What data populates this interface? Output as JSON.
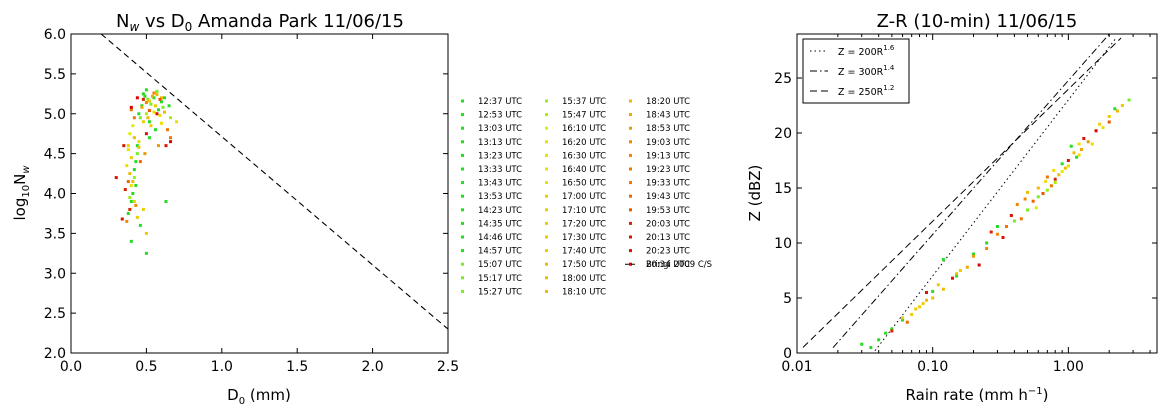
{
  "chart_data": [
    {
      "type": "scatter",
      "title_parts": [
        "N",
        "w",
        " vs D",
        "0",
        " Amanda Park 11/06/15"
      ],
      "xlabel_parts": [
        "D",
        "0",
        " (mm)"
      ],
      "ylabel_parts": [
        "log",
        "10",
        "N",
        "w"
      ],
      "xlim": [
        0.0,
        2.5
      ],
      "ylim": [
        2.0,
        6.0
      ],
      "x_ticks": [
        "0.0",
        "0.5",
        "1.0",
        "1.5",
        "2.0",
        "2.5"
      ],
      "y_ticks": [
        "2.0",
        "2.5",
        "3.0",
        "3.5",
        "4.0",
        "4.5",
        "5.0",
        "5.5",
        "6.0"
      ],
      "reference_line": {
        "name": "Bringi 2009 C/S",
        "x": [
          0.2,
          2.5
        ],
        "y": [
          6.0,
          2.3
        ],
        "style": "dashed"
      },
      "series": [
        {
          "name": "12:37 UTC",
          "color": "#22dd22"
        },
        {
          "name": "12:53 UTC",
          "color": "#22dd22"
        },
        {
          "name": "13:03 UTC",
          "color": "#22dd22"
        },
        {
          "name": "13:13 UTC",
          "color": "#22dd22"
        },
        {
          "name": "13:23 UTC",
          "color": "#22dd22"
        },
        {
          "name": "13:33 UTC",
          "color": "#22dd22"
        },
        {
          "name": "13:43 UTC",
          "color": "#22dd22"
        },
        {
          "name": "13:53 UTC",
          "color": "#22dd22"
        },
        {
          "name": "14:23 UTC",
          "color": "#22dd22"
        },
        {
          "name": "14:35 UTC",
          "color": "#22dd22"
        },
        {
          "name": "14:46 UTC",
          "color": "#22dd22"
        },
        {
          "name": "14:57 UTC",
          "color": "#22dd22"
        },
        {
          "name": "15:07 UTC",
          "color": "#77ee22"
        },
        {
          "name": "15:17 UTC",
          "color": "#77ee22"
        },
        {
          "name": "15:27 UTC",
          "color": "#77ee22"
        },
        {
          "name": "15:37 UTC",
          "color": "#99ee22"
        },
        {
          "name": "15:47 UTC",
          "color": "#aaee11"
        },
        {
          "name": "16:10 UTC",
          "color": "#ddee00"
        },
        {
          "name": "16:20 UTC",
          "color": "#eedd00"
        },
        {
          "name": "16:30 UTC",
          "color": "#eedd00"
        },
        {
          "name": "16:40 UTC",
          "color": "#eedd00"
        },
        {
          "name": "16:50 UTC",
          "color": "#eedd00"
        },
        {
          "name": "17:00 UTC",
          "color": "#eecc00"
        },
        {
          "name": "17:10 UTC",
          "color": "#eecc00"
        },
        {
          "name": "17:20 UTC",
          "color": "#eecc00"
        },
        {
          "name": "17:30 UTC",
          "color": "#eecc00"
        },
        {
          "name": "17:40 UTC",
          "color": "#eecc00"
        },
        {
          "name": "17:50 UTC",
          "color": "#eebb00"
        },
        {
          "name": "18:00 UTC",
          "color": "#eebb00"
        },
        {
          "name": "18:10 UTC",
          "color": "#eebb00"
        },
        {
          "name": "18:20 UTC",
          "color": "#eebb00"
        },
        {
          "name": "18:43 UTC",
          "color": "#eeaa00"
        },
        {
          "name": "18:53 UTC",
          "color": "#ee9900"
        },
        {
          "name": "19:03 UTC",
          "color": "#ee8800"
        },
        {
          "name": "19:13 UTC",
          "color": "#ee8800"
        },
        {
          "name": "19:23 UTC",
          "color": "#ee7700"
        },
        {
          "name": "19:33 UTC",
          "color": "#ee7700"
        },
        {
          "name": "19:43 UTC",
          "color": "#ee6600"
        },
        {
          "name": "19:53 UTC",
          "color": "#ee5500"
        },
        {
          "name": "20:03 UTC",
          "color": "#dd2200"
        },
        {
          "name": "20:13 UTC",
          "color": "#dd1100"
        },
        {
          "name": "20:23 UTC",
          "color": "#dd1100"
        },
        {
          "name": "20:34 UTC",
          "color": "#dd0000"
        }
      ],
      "points": [
        [
          0.5,
          5.3,
          0
        ],
        [
          0.47,
          5.1,
          0
        ],
        [
          0.55,
          5.2,
          1
        ],
        [
          0.52,
          4.9,
          1
        ],
        [
          0.6,
          5.15,
          2
        ],
        [
          0.48,
          5.25,
          2
        ],
        [
          0.44,
          4.6,
          3
        ],
        [
          0.42,
          4.3,
          3
        ],
        [
          0.4,
          3.9,
          4
        ],
        [
          0.38,
          3.75,
          4
        ],
        [
          0.43,
          4.1,
          5
        ],
        [
          0.41,
          4.0,
          5
        ],
        [
          0.5,
          3.25,
          6
        ],
        [
          0.46,
          3.6,
          6
        ],
        [
          0.62,
          5.2,
          7
        ],
        [
          0.65,
          5.1,
          7
        ],
        [
          0.63,
          3.9,
          8
        ],
        [
          0.58,
          5.05,
          8
        ],
        [
          0.56,
          4.8,
          9
        ],
        [
          0.52,
          4.7,
          9
        ],
        [
          0.45,
          5.0,
          10
        ],
        [
          0.49,
          5.22,
          10
        ],
        [
          0.4,
          3.4,
          11
        ],
        [
          0.43,
          4.4,
          11
        ],
        [
          0.51,
          5.18,
          12
        ],
        [
          0.57,
          5.28,
          12
        ],
        [
          0.61,
          5.08,
          13
        ],
        [
          0.46,
          4.95,
          13
        ],
        [
          0.53,
          5.12,
          14
        ],
        [
          0.44,
          4.5,
          14
        ],
        [
          0.42,
          4.2,
          15
        ],
        [
          0.39,
          3.95,
          15
        ],
        [
          0.5,
          5.0,
          16
        ],
        [
          0.66,
          4.95,
          16
        ],
        [
          0.41,
          4.85,
          17
        ],
        [
          0.39,
          4.75,
          17
        ],
        [
          0.7,
          4.9,
          18
        ],
        [
          0.6,
          4.88,
          18
        ],
        [
          0.45,
          4.65,
          19
        ],
        [
          0.38,
          4.55,
          19
        ],
        [
          0.37,
          4.35,
          20
        ],
        [
          0.4,
          4.1,
          20
        ],
        [
          0.55,
          5.02,
          21
        ],
        [
          0.59,
          4.98,
          21
        ],
        [
          0.48,
          3.8,
          22
        ],
        [
          0.44,
          3.7,
          22
        ],
        [
          0.5,
          3.5,
          23
        ],
        [
          0.42,
          3.9,
          23
        ],
        [
          0.52,
          5.16,
          24
        ],
        [
          0.56,
          5.1,
          24
        ],
        [
          0.38,
          4.6,
          25
        ],
        [
          0.4,
          4.45,
          25
        ],
        [
          0.48,
          4.9,
          26
        ],
        [
          0.53,
          4.85,
          26
        ],
        [
          0.57,
          5.24,
          27
        ],
        [
          0.6,
          5.2,
          27
        ],
        [
          0.42,
          4.7,
          28
        ],
        [
          0.45,
          4.58,
          28
        ],
        [
          0.39,
          4.25,
          29
        ],
        [
          0.41,
          4.15,
          29
        ],
        [
          0.51,
          4.95,
          30
        ],
        [
          0.62,
          5.02,
          30
        ],
        [
          0.54,
          5.22,
          31
        ],
        [
          0.47,
          5.08,
          31
        ],
        [
          0.58,
          4.6,
          32
        ],
        [
          0.49,
          4.5,
          32
        ],
        [
          0.43,
          3.85,
          33
        ],
        [
          0.37,
          3.65,
          33
        ],
        [
          0.55,
          5.26,
          34
        ],
        [
          0.5,
          5.14,
          34
        ],
        [
          0.64,
          4.8,
          35
        ],
        [
          0.66,
          4.7,
          35
        ],
        [
          0.42,
          4.95,
          36
        ],
        [
          0.4,
          5.05,
          36
        ],
        [
          0.46,
          4.4,
          37
        ],
        [
          0.38,
          4.15,
          37
        ],
        [
          0.59,
          5.18,
          38
        ],
        [
          0.52,
          5.04,
          38
        ],
        [
          0.39,
          3.8,
          39
        ],
        [
          0.36,
          4.05,
          39
        ],
        [
          0.3,
          4.2,
          40
        ],
        [
          0.34,
          3.68,
          40
        ],
        [
          0.5,
          4.75,
          41
        ],
        [
          0.63,
          4.6,
          41
        ],
        [
          0.4,
          5.08,
          42
        ],
        [
          0.44,
          5.2,
          42
        ],
        [
          0.35,
          4.6,
          41
        ],
        [
          0.66,
          4.65,
          42
        ],
        [
          0.57,
          5.0,
          40
        ],
        [
          0.48,
          5.18,
          39
        ]
      ]
    },
    {
      "type": "scatter",
      "title": "Z-R (10-min) 11/06/15",
      "xlabel_parts": [
        "Rain rate (mm h",
        "−1",
        ")"
      ],
      "ylabel": "Z (dBZ)",
      "xscale": "log",
      "xlim": [
        0.01,
        4.5
      ],
      "ylim": [
        0,
        29
      ],
      "x_ticks": [
        {
          "v": 0.01,
          "label": "0.01"
        },
        {
          "v": 0.1,
          "label": "0.10"
        },
        {
          "v": 1.0,
          "label": "1.00"
        }
      ],
      "y_ticks": [
        "0",
        "5",
        "10",
        "15",
        "20",
        "25"
      ],
      "legend": "top-left",
      "relations": [
        {
          "base": "Z = 200R",
          "exp": "1.6",
          "a": 200,
          "b": 1.6,
          "style": "dotted"
        },
        {
          "base": "Z = 300R",
          "exp": "1.4",
          "a": 300,
          "b": 1.4,
          "style": "dashdot"
        },
        {
          "base": "Z = 250R",
          "exp": "1.2",
          "a": 250,
          "b": 1.2,
          "style": "dashed"
        }
      ],
      "points": [
        [
          0.03,
          0.8,
          0
        ],
        [
          0.035,
          0.5,
          1
        ],
        [
          0.04,
          1.2,
          2
        ],
        [
          0.045,
          1.8,
          3
        ],
        [
          0.05,
          2.2,
          4
        ],
        [
          0.06,
          3.0,
          5
        ],
        [
          0.1,
          5.6,
          6
        ],
        [
          0.12,
          8.5,
          7
        ],
        [
          0.15,
          7.0,
          8
        ],
        [
          0.2,
          9.0,
          9
        ],
        [
          0.25,
          10.0,
          10
        ],
        [
          0.3,
          11.5,
          11
        ],
        [
          0.4,
          12.0,
          12
        ],
        [
          0.5,
          13.0,
          13
        ],
        [
          0.6,
          14.2,
          14
        ],
        [
          0.7,
          14.8,
          15
        ],
        [
          0.8,
          15.5,
          16
        ],
        [
          0.9,
          16.5,
          17
        ],
        [
          1.0,
          17.0,
          18
        ],
        [
          1.2,
          18.0,
          19
        ],
        [
          1.5,
          19.0,
          20
        ],
        [
          1.8,
          20.5,
          21
        ],
        [
          2.0,
          21.5,
          22
        ],
        [
          2.5,
          22.5,
          23
        ],
        [
          2.8,
          23.0,
          12
        ],
        [
          0.06,
          3.2,
          24
        ],
        [
          0.07,
          3.5,
          25
        ],
        [
          0.08,
          4.2,
          26
        ],
        [
          0.09,
          4.8,
          27
        ],
        [
          0.1,
          5.0,
          28
        ],
        [
          0.12,
          5.8,
          29
        ],
        [
          0.15,
          7.2,
          30
        ],
        [
          0.18,
          7.8,
          31
        ],
        [
          0.2,
          8.8,
          32
        ],
        [
          0.25,
          9.5,
          33
        ],
        [
          0.3,
          10.8,
          34
        ],
        [
          0.35,
          11.5,
          35
        ],
        [
          0.45,
          12.2,
          36
        ],
        [
          0.55,
          13.8,
          37
        ],
        [
          0.65,
          14.5,
          38
        ],
        [
          0.8,
          15.8,
          39
        ],
        [
          1.0,
          17.5,
          40
        ],
        [
          1.3,
          19.5,
          41
        ],
        [
          1.6,
          20.2,
          42
        ],
        [
          2.0,
          21.0,
          38
        ],
        [
          2.3,
          22.0,
          27
        ],
        [
          0.05,
          2.0,
          39
        ],
        [
          0.09,
          5.5,
          40
        ],
        [
          0.14,
          6.8,
          41
        ],
        [
          0.22,
          8.0,
          42
        ],
        [
          0.27,
          11.0,
          39
        ],
        [
          0.33,
          10.5,
          40
        ],
        [
          0.38,
          12.5,
          41
        ],
        [
          0.42,
          13.5,
          33
        ],
        [
          0.48,
          14.0,
          34
        ],
        [
          0.7,
          16.0,
          35
        ],
        [
          0.75,
          15.2,
          36
        ],
        [
          0.85,
          16.2,
          28
        ],
        [
          0.95,
          16.8,
          29
        ],
        [
          1.1,
          18.2,
          30
        ],
        [
          1.25,
          18.5,
          31
        ],
        [
          1.4,
          19.2,
          32
        ],
        [
          1.7,
          20.8,
          22
        ],
        [
          0.9,
          17.2,
          3
        ],
        [
          1.05,
          18.8,
          4
        ],
        [
          1.15,
          17.8,
          5
        ],
        [
          2.2,
          22.2,
          6
        ],
        [
          0.065,
          2.8,
          37
        ],
        [
          0.075,
          4.0,
          23
        ],
        [
          0.085,
          4.5,
          24
        ],
        [
          0.11,
          6.2,
          25
        ],
        [
          0.16,
          7.5,
          26
        ],
        [
          0.5,
          14.6,
          27
        ],
        [
          0.6,
          15.0,
          28
        ],
        [
          0.58,
          13.2,
          17
        ],
        [
          0.68,
          15.6,
          18
        ],
        [
          0.78,
          16.6,
          19
        ],
        [
          1.2,
          19.0,
          20
        ]
      ]
    }
  ]
}
